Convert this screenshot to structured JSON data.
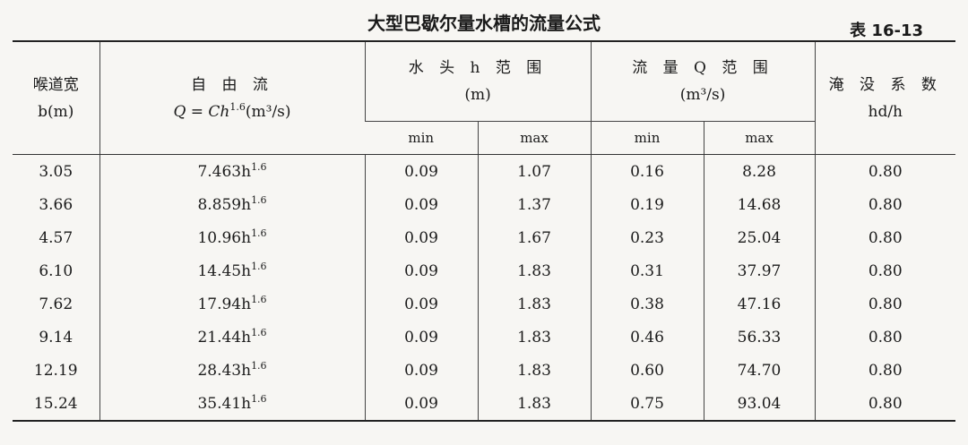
{
  "title": "大型巴歇尔量水槽的流量公式",
  "table_no": "表 16-13",
  "header": {
    "col1_line1": "喉道宽",
    "col1_line2": "b(m)",
    "col2_line1": "自 由 流",
    "col2_formula_prefix": "Q = Ch",
    "col2_formula_exp": "1.6",
    "col2_formula_suffix": "(m³/s)",
    "col3_line1": "水 头 h 范 围",
    "col3_line2": "(m)",
    "col4_line1": "流 量 Q 范 围",
    "col4_line2": "(m³/s)",
    "col5_line1": "淹 没 系 数",
    "col5_line2": "hd/h",
    "min": "min",
    "max": "max"
  },
  "exp": "1.6",
  "rows": [
    {
      "b": "3.05",
      "coef": "7.463h",
      "hmin": "0.09",
      "hmax": "1.07",
      "qmin": "0.16",
      "qmax": "8.28",
      "sub": "0.80"
    },
    {
      "b": "3.66",
      "coef": "8.859h",
      "hmin": "0.09",
      "hmax": "1.37",
      "qmin": "0.19",
      "qmax": "14.68",
      "sub": "0.80"
    },
    {
      "b": "4.57",
      "coef": "10.96h",
      "hmin": "0.09",
      "hmax": "1.67",
      "qmin": "0.23",
      "qmax": "25.04",
      "sub": "0.80"
    },
    {
      "b": "6.10",
      "coef": "14.45h",
      "hmin": "0.09",
      "hmax": "1.83",
      "qmin": "0.31",
      "qmax": "37.97",
      "sub": "0.80"
    },
    {
      "b": "7.62",
      "coef": "17.94h",
      "hmin": "0.09",
      "hmax": "1.83",
      "qmin": "0.38",
      "qmax": "47.16",
      "sub": "0.80"
    },
    {
      "b": "9.14",
      "coef": "21.44h",
      "hmin": "0.09",
      "hmax": "1.83",
      "qmin": "0.46",
      "qmax": "56.33",
      "sub": "0.80"
    },
    {
      "b": "12.19",
      "coef": "28.43h",
      "hmin": "0.09",
      "hmax": "1.83",
      "qmin": "0.60",
      "qmax": "74.70",
      "sub": "0.80"
    },
    {
      "b": "15.24",
      "coef": "35.41h",
      "hmin": "0.09",
      "hmax": "1.83",
      "qmin": "0.75",
      "qmax": "93.04",
      "sub": "0.80"
    }
  ]
}
